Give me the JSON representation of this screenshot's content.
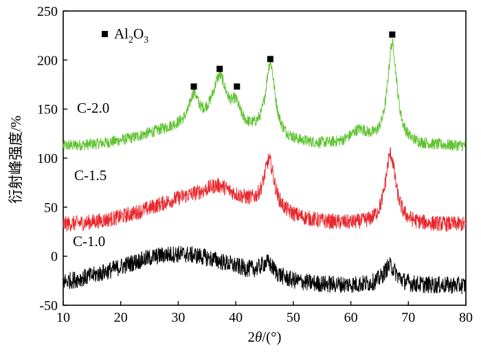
{
  "chart_data": {
    "type": "line",
    "xlabel_prefix": "2",
    "xlabel_var": "θ",
    "xlabel_unit": "/(°)",
    "ylabel": "衍射峰强度/%",
    "xlim": [
      10,
      80
    ],
    "ylim": [
      -50,
      250
    ],
    "x_ticks": [
      10,
      20,
      30,
      40,
      50,
      60,
      70,
      80
    ],
    "y_ticks": [
      -50,
      0,
      50,
      100,
      150,
      200,
      250
    ],
    "grid": false,
    "legend": {
      "placement": "top-left",
      "marker": "square",
      "marker_color": "#000000",
      "label_main": "Al",
      "label_sub1": "2",
      "label_mid": "O",
      "label_sub2": "3"
    },
    "series": [
      {
        "name": "C-2.0",
        "color": "#5ec22f",
        "baseline": 112,
        "noise": 6,
        "hump": {
          "center": 34,
          "width": 12,
          "height": 22
        },
        "peaks": [
          {
            "x": 32.7,
            "h": 28,
            "w": 0.9
          },
          {
            "x": 37.2,
            "h": 48,
            "w": 1.5
          },
          {
            "x": 40.0,
            "h": 18,
            "w": 0.9
          },
          {
            "x": 46.0,
            "h": 75,
            "w": 1.0
          },
          {
            "x": 61.5,
            "h": 14,
            "w": 2.0
          },
          {
            "x": 67.2,
            "h": 103,
            "w": 1.0
          }
        ]
      },
      {
        "name": "C-1.5",
        "color": "#e8272d",
        "baseline": 32,
        "noise": 8,
        "hump": {
          "center": 35,
          "width": 13,
          "height": 30
        },
        "peaks": [
          {
            "x": 37.0,
            "h": 10,
            "w": 2.5
          },
          {
            "x": 45.8,
            "h": 50,
            "w": 1.1
          },
          {
            "x": 66.9,
            "h": 72,
            "w": 1.1
          }
        ]
      },
      {
        "name": "C-1.0",
        "color": "#000000",
        "baseline": -30,
        "noise": 9,
        "hump": {
          "center": 30,
          "width": 14,
          "height": 32
        },
        "peaks": [
          {
            "x": 45.5,
            "h": 14,
            "w": 1.5
          },
          {
            "x": 66.8,
            "h": 20,
            "w": 1.4
          }
        ]
      }
    ],
    "markers": [
      {
        "x": 32.7,
        "y": 173
      },
      {
        "x": 37.2,
        "y": 191
      },
      {
        "x": 40.2,
        "y": 173
      },
      {
        "x": 46.0,
        "y": 201
      },
      {
        "x": 67.2,
        "y": 226
      }
    ]
  }
}
